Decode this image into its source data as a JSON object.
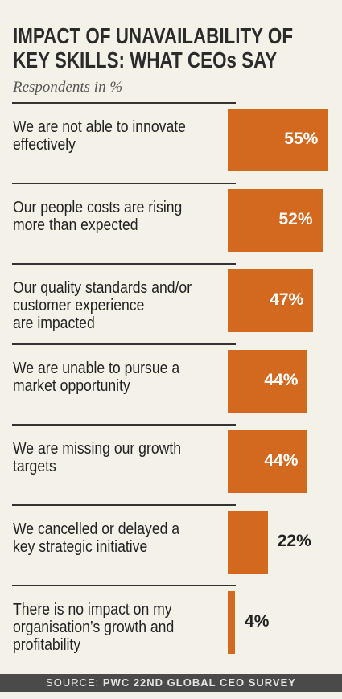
{
  "chart_data": {
    "type": "bar",
    "title": "IMPACT OF UNAVAILABILITY OF\nKEY SKILLS: WHAT CEOs SAY",
    "subtitle": "Respondents in %",
    "categories": [
      "We are not able to innovate\neffectively",
      "Our people costs are rising\nmore than expected",
      "Our quality standards and/or\ncustomer experience\nare impacted",
      "We are unable to pursue a\nmarket opportunity",
      "We are missing our growth\ntargets",
      "We cancelled or delayed a\nkey strategic initiative",
      "There is no impact on my\norganisation’s growth and\nprofitability"
    ],
    "values": [
      55,
      52,
      47,
      44,
      44,
      22,
      4
    ],
    "value_labels": [
      "55%",
      "52%",
      "47%",
      "44%",
      "44%",
      "22%",
      "4%"
    ],
    "color": "#d2691f",
    "source_label": "SOURCE:",
    "source": "PWC 22ND GLOBAL CEO SURVEY"
  }
}
